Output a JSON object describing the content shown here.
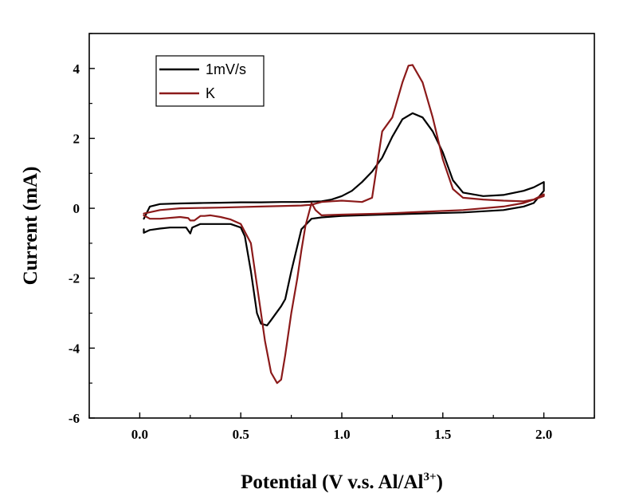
{
  "chart_data": {
    "type": "line",
    "xlabel": "Potential (V v.s. Al/Al",
    "xlabel_superscript": "3+",
    "xlabel_suffix": ")",
    "ylabel": "Current (mA)",
    "xlim": [
      -0.25,
      2.25
    ],
    "ylim": [
      -6,
      5
    ],
    "x_ticks": [
      0.0,
      0.5,
      1.0,
      1.5,
      2.0
    ],
    "x_tick_labels": [
      "0.0",
      "0.5",
      "1.0",
      "1.5",
      "2.0"
    ],
    "y_ticks": [
      -6,
      -4,
      -2,
      0,
      2,
      4
    ],
    "y_tick_labels": [
      "-6",
      "-4",
      "-2",
      "0",
      "2",
      "4"
    ],
    "grid": false,
    "legend_position": "top-left",
    "series": [
      {
        "name": "1mV/s",
        "color": "#000000",
        "x": [
          0.02,
          0.05,
          0.1,
          0.2,
          0.3,
          0.4,
          0.5,
          0.6,
          0.7,
          0.8,
          0.9,
          0.95,
          1.0,
          1.05,
          1.1,
          1.15,
          1.2,
          1.25,
          1.3,
          1.35,
          1.4,
          1.45,
          1.5,
          1.55,
          1.6,
          1.7,
          1.8,
          1.9,
          1.95,
          2.0,
          2.0,
          1.95,
          1.9,
          1.8,
          1.6,
          1.4,
          1.2,
          1.0,
          0.9,
          0.85,
          0.8,
          0.75,
          0.72,
          0.7,
          0.65,
          0.63,
          0.6,
          0.58,
          0.55,
          0.52,
          0.5,
          0.45,
          0.4,
          0.3,
          0.26,
          0.25,
          0.23,
          0.2,
          0.15,
          0.1,
          0.05,
          0.02,
          0.02
        ],
        "y": [
          -0.3,
          0.05,
          0.12,
          0.14,
          0.15,
          0.16,
          0.17,
          0.17,
          0.18,
          0.18,
          0.2,
          0.25,
          0.35,
          0.5,
          0.75,
          1.05,
          1.45,
          2.05,
          2.55,
          2.72,
          2.6,
          2.2,
          1.6,
          0.8,
          0.45,
          0.35,
          0.38,
          0.5,
          0.6,
          0.75,
          0.5,
          0.15,
          0.05,
          -0.05,
          -0.12,
          -0.15,
          -0.18,
          -0.22,
          -0.26,
          -0.3,
          -0.6,
          -1.8,
          -2.6,
          -2.8,
          -3.2,
          -3.35,
          -3.3,
          -3.0,
          -1.8,
          -0.8,
          -0.55,
          -0.45,
          -0.45,
          -0.45,
          -0.55,
          -0.72,
          -0.55,
          -0.55,
          -0.55,
          -0.58,
          -0.62,
          -0.7,
          -0.6
        ]
      },
      {
        "name": "K",
        "color": "#8B1A1A",
        "x": [
          0.02,
          0.1,
          0.2,
          0.4,
          0.6,
          0.8,
          0.85,
          0.88,
          0.9,
          0.95,
          1.0,
          1.05,
          1.1,
          1.15,
          1.2,
          1.25,
          1.3,
          1.33,
          1.35,
          1.4,
          1.45,
          1.5,
          1.55,
          1.6,
          1.7,
          1.8,
          1.9,
          1.95,
          2.0,
          2.0,
          1.9,
          1.8,
          1.6,
          1.4,
          1.2,
          1.0,
          0.9,
          0.87,
          0.85,
          0.82,
          0.8,
          0.78,
          0.75,
          0.72,
          0.7,
          0.68,
          0.65,
          0.62,
          0.6,
          0.58,
          0.55,
          0.5,
          0.45,
          0.4,
          0.35,
          0.32,
          0.3,
          0.27,
          0.25,
          0.24,
          0.2,
          0.1,
          0.05,
          0.02
        ],
        "y": [
          -0.15,
          -0.05,
          0.0,
          0.02,
          0.05,
          0.08,
          0.1,
          0.15,
          0.18,
          0.2,
          0.22,
          0.2,
          0.18,
          0.3,
          2.2,
          2.6,
          3.6,
          4.08,
          4.1,
          3.6,
          2.6,
          1.4,
          0.55,
          0.3,
          0.25,
          0.22,
          0.2,
          0.25,
          0.4,
          0.35,
          0.15,
          0.05,
          -0.05,
          -0.1,
          -0.15,
          -0.18,
          -0.2,
          -0.05,
          0.15,
          -0.5,
          -1.2,
          -2.0,
          -3.0,
          -4.2,
          -4.9,
          -5.0,
          -4.7,
          -3.8,
          -3.0,
          -2.2,
          -1.0,
          -0.45,
          -0.32,
          -0.25,
          -0.2,
          -0.22,
          -0.22,
          -0.35,
          -0.35,
          -0.28,
          -0.25,
          -0.3,
          -0.3,
          -0.2
        ]
      }
    ]
  }
}
